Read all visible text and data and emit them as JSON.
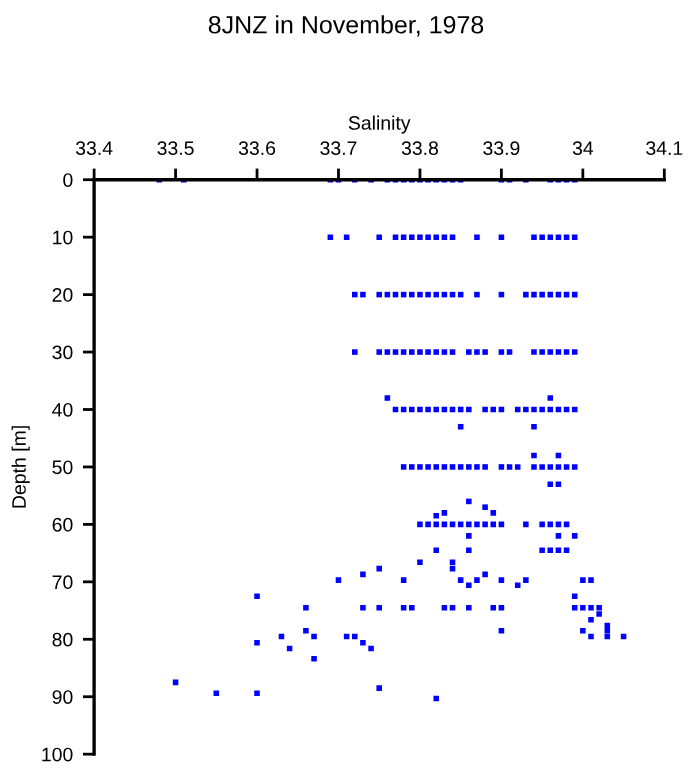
{
  "chart_data": {
    "type": "scatter",
    "title": "8JNZ in November, 1978",
    "xlabel": "Salinity",
    "ylabel": "Depth [m]",
    "xlim": [
      33.4,
      34.1
    ],
    "xticks": [
      33.4,
      33.5,
      33.6,
      33.7,
      33.8,
      33.9,
      {
        "value": 34.0,
        "label": "34"
      },
      34.1
    ],
    "ylim": [
      100,
      0
    ],
    "yticks": [
      0,
      10,
      20,
      30,
      40,
      50,
      60,
      70,
      80,
      90,
      100
    ],
    "grid": false,
    "legend": false,
    "marker": "square",
    "series": [
      {
        "color": "#0000ff",
        "x": [
          33.48,
          33.51,
          33.69,
          33.7,
          33.72,
          33.74,
          33.76,
          33.77,
          33.78,
          33.79,
          33.8,
          33.81,
          33.82,
          33.83,
          33.84,
          33.85,
          33.9,
          33.91,
          33.93,
          33.96,
          33.97,
          33.98,
          33.99,
          33.69,
          33.71,
          33.75,
          33.77,
          33.78,
          33.79,
          33.8,
          33.81,
          33.82,
          33.83,
          33.84,
          33.87,
          33.9,
          33.94,
          33.95,
          33.96,
          33.97,
          33.98,
          33.99,
          33.72,
          33.73,
          33.75,
          33.76,
          33.77,
          33.78,
          33.79,
          33.8,
          33.81,
          33.82,
          33.83,
          33.84,
          33.85,
          33.87,
          33.9,
          33.93,
          33.94,
          33.95,
          33.96,
          33.97,
          33.98,
          33.99,
          33.72,
          33.75,
          33.76,
          33.77,
          33.78,
          33.79,
          33.8,
          33.81,
          33.82,
          33.83,
          33.84,
          33.86,
          33.87,
          33.88,
          33.9,
          33.91,
          33.94,
          33.95,
          33.96,
          33.97,
          33.98,
          33.99,
          33.76,
          33.96,
          33.77,
          33.78,
          33.79,
          33.8,
          33.81,
          33.82,
          33.83,
          33.84,
          33.85,
          33.86,
          33.88,
          33.89,
          33.9,
          33.92,
          33.93,
          33.94,
          33.95,
          33.96,
          33.97,
          33.98,
          33.99,
          33.85,
          33.94,
          33.94,
          33.97,
          33.78,
          33.79,
          33.8,
          33.81,
          33.82,
          33.83,
          33.84,
          33.85,
          33.86,
          33.87,
          33.88,
          33.9,
          33.91,
          33.92,
          33.94,
          33.95,
          33.96,
          33.97,
          33.98,
          33.99,
          33.96,
          33.97,
          33.86,
          33.88,
          33.83,
          33.89,
          33.82,
          33.8,
          33.81,
          33.82,
          33.83,
          33.84,
          33.85,
          33.86,
          33.87,
          33.88,
          33.89,
          33.9,
          33.93,
          33.95,
          33.96,
          33.97,
          33.98,
          33.86,
          33.97,
          33.99,
          33.82,
          33.86,
          33.95,
          33.96,
          33.97,
          33.98,
          33.8,
          33.84,
          33.75,
          33.84,
          33.73,
          33.88,
          33.7,
          33.78,
          33.85,
          33.87,
          33.9,
          33.93,
          34.0,
          34.01,
          33.86,
          33.92,
          33.6,
          33.99,
          33.66,
          33.73,
          33.75,
          33.78,
          33.79,
          33.83,
          33.84,
          33.86,
          33.89,
          33.9,
          33.99,
          34.0,
          34.01,
          34.02,
          34.02,
          34.01,
          34.03,
          33.66,
          33.9,
          34.0,
          34.03,
          33.63,
          33.67,
          33.71,
          33.72,
          34.01,
          34.03,
          34.05,
          33.6,
          33.73,
          33.64,
          33.74,
          33.67,
          33.5,
          33.75,
          33.55,
          33.6,
          33.82
        ],
        "values": [
          0,
          0,
          0,
          0,
          0,
          0,
          0,
          0,
          0,
          0,
          0,
          0,
          0,
          0,
          0,
          0,
          0,
          0,
          0,
          0,
          0,
          0,
          0,
          10,
          10,
          10,
          10,
          10,
          10,
          10,
          10,
          10,
          10,
          10,
          10,
          10,
          10,
          10,
          10,
          10,
          10,
          10,
          20,
          20,
          20,
          20,
          20,
          20,
          20,
          20,
          20,
          20,
          20,
          20,
          20,
          20,
          20,
          20,
          20,
          20,
          20,
          20,
          20,
          20,
          30,
          30,
          30,
          30,
          30,
          30,
          30,
          30,
          30,
          30,
          30,
          30,
          30,
          30,
          30,
          30,
          30,
          30,
          30,
          30,
          30,
          30,
          38,
          38,
          40,
          40,
          40,
          40,
          40,
          40,
          40,
          40,
          40,
          40,
          40,
          40,
          40,
          40,
          40,
          40,
          40,
          40,
          40,
          40,
          40,
          43,
          43,
          48,
          48,
          50,
          50,
          50,
          50,
          50,
          50,
          50,
          50,
          50,
          50,
          50,
          50,
          50,
          50,
          50,
          50,
          50,
          50,
          50,
          50,
          53,
          53,
          56,
          57,
          58,
          58,
          58.5,
          60,
          60,
          60,
          60,
          60,
          60,
          60,
          60,
          60,
          60,
          60,
          60,
          60,
          60,
          60,
          60,
          62,
          62,
          62,
          64.5,
          64.5,
          64.5,
          64.5,
          64.5,
          64.5,
          66.6,
          66.6,
          67.7,
          67.7,
          68.7,
          68.7,
          69.7,
          69.7,
          69.7,
          69.7,
          69.7,
          69.7,
          69.7,
          69.7,
          70.6,
          70.6,
          72.5,
          72.5,
          74.5,
          74.5,
          74.5,
          74.5,
          74.5,
          74.5,
          74.5,
          74.5,
          74.5,
          74.5,
          74.5,
          74.5,
          74.5,
          74.5,
          75.6,
          76.6,
          77.6,
          78.5,
          78.5,
          78.5,
          78.5,
          79.5,
          79.5,
          79.5,
          79.5,
          79.5,
          79.5,
          79.5,
          80.6,
          80.6,
          81.6,
          81.6,
          83.4,
          87.5,
          88.5,
          89.4,
          89.4,
          90.3
        ]
      }
    ]
  }
}
